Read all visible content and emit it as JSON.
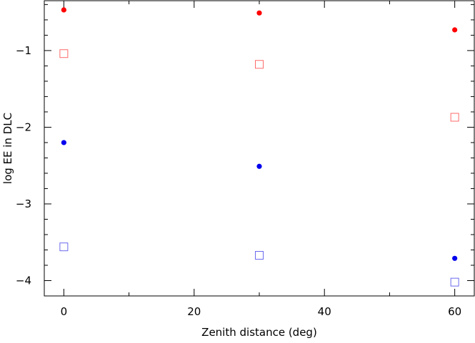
{
  "chart_data": {
    "type": "scatter",
    "title": "",
    "xlabel": "Zenith distance (deg)",
    "ylabel": "log EE in DLC",
    "xlim": [
      -3,
      63
    ],
    "ylim": [
      -4.2,
      -0.35
    ],
    "x_major_ticks": [
      0,
      20,
      40,
      60
    ],
    "x_tick_labels": [
      "0",
      "20",
      "40",
      "60"
    ],
    "x_minor_step": 10,
    "y_major_ticks": [
      -1,
      -2,
      -3,
      -4
    ],
    "y_tick_labels": [
      "−1",
      "−2",
      "−3",
      "−4"
    ],
    "y_minor_step": 0.2,
    "grid": false,
    "series": [
      {
        "marker": "filled-circle",
        "color": "#ff0000",
        "x": [
          0,
          30,
          60
        ],
        "y": [
          -0.47,
          -0.51,
          -0.73
        ]
      },
      {
        "marker": "open-square",
        "color": "#ff6a6a",
        "x": [
          0,
          30,
          60
        ],
        "y": [
          -1.04,
          -1.18,
          -1.87
        ]
      },
      {
        "marker": "filled-circle",
        "color": "#0000ee",
        "x": [
          0,
          30,
          60
        ],
        "y": [
          -2.2,
          -2.51,
          -3.71
        ]
      },
      {
        "marker": "open-square",
        "color": "#6a6aee",
        "x": [
          0,
          30,
          60
        ],
        "y": [
          -3.56,
          -3.67,
          -4.02
        ]
      }
    ]
  }
}
